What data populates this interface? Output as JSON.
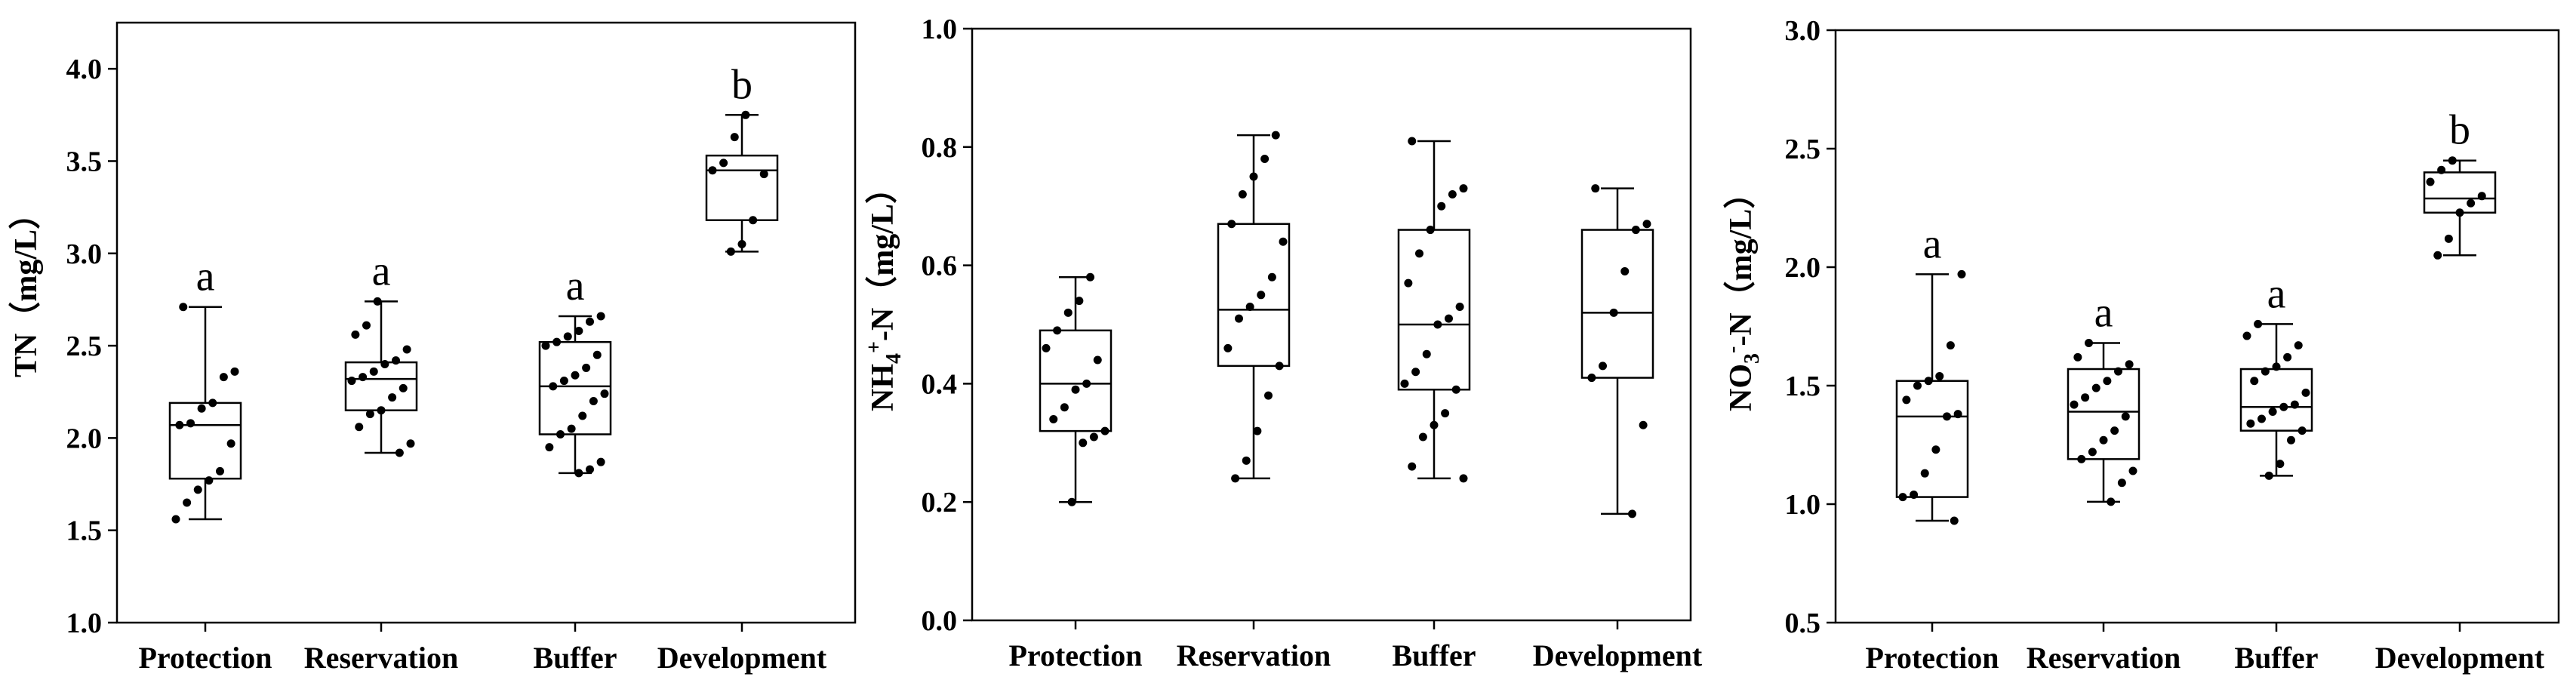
{
  "chart_data": [
    {
      "type": "box",
      "ylabel_main": "TN",
      "ylabel_unit": "（mg/L）",
      "ylim": [
        1.0,
        4.25
      ],
      "yticks": [
        1.0,
        1.5,
        2.0,
        2.5,
        3.0,
        3.5,
        4.0
      ],
      "tick_decimals": 1,
      "categories": [
        "Protection",
        "Reservation",
        "Buffer",
        "Development"
      ],
      "boxes": [
        {
          "min": 1.56,
          "q1": 1.78,
          "median": 2.07,
          "q3": 2.19,
          "max": 2.71,
          "sig": "a",
          "points": [
            1.56,
            1.65,
            1.72,
            1.77,
            1.82,
            1.97,
            2.07,
            2.08,
            2.16,
            2.19,
            2.33,
            2.36,
            2.71
          ]
        },
        {
          "min": 1.92,
          "q1": 2.15,
          "median": 2.32,
          "q3": 2.41,
          "max": 2.74,
          "sig": "a",
          "points": [
            1.92,
            1.97,
            2.06,
            2.13,
            2.15,
            2.22,
            2.27,
            2.31,
            2.33,
            2.36,
            2.4,
            2.42,
            2.48,
            2.56,
            2.61,
            2.74
          ]
        },
        {
          "min": 1.81,
          "q1": 2.02,
          "median": 2.28,
          "q3": 2.52,
          "max": 2.66,
          "sig": "a",
          "points": [
            1.81,
            1.83,
            1.87,
            1.95,
            2.02,
            2.05,
            2.12,
            2.2,
            2.24,
            2.28,
            2.31,
            2.34,
            2.38,
            2.45,
            2.5,
            2.52,
            2.55,
            2.58,
            2.63,
            2.66
          ]
        },
        {
          "min": 3.01,
          "q1": 3.18,
          "median": 3.45,
          "q3": 3.53,
          "max": 3.75,
          "sig": "b",
          "points": [
            3.01,
            3.05,
            3.18,
            3.43,
            3.45,
            3.49,
            3.63,
            3.75
          ]
        }
      ]
    },
    {
      "type": "box",
      "ylabel_main": "NH4+-N",
      "ylabel_unit": "（mg/L）",
      "ylim": [
        0.0,
        1.0
      ],
      "yticks": [
        0.0,
        0.2,
        0.4,
        0.6,
        0.8,
        1.0
      ],
      "tick_decimals": 1,
      "categories": [
        "Protection",
        "Reservation",
        "Buffer",
        "Development"
      ],
      "boxes": [
        {
          "min": 0.2,
          "q1": 0.32,
          "median": 0.4,
          "q3": 0.49,
          "max": 0.58,
          "sig": "",
          "points": [
            0.2,
            0.3,
            0.31,
            0.32,
            0.34,
            0.36,
            0.39,
            0.4,
            0.44,
            0.46,
            0.49,
            0.52,
            0.54,
            0.58
          ]
        },
        {
          "min": 0.24,
          "q1": 0.43,
          "median": 0.525,
          "q3": 0.67,
          "max": 0.82,
          "sig": "",
          "points": [
            0.24,
            0.27,
            0.32,
            0.38,
            0.43,
            0.46,
            0.51,
            0.53,
            0.55,
            0.58,
            0.64,
            0.67,
            0.72,
            0.75,
            0.78,
            0.82
          ]
        },
        {
          "min": 0.24,
          "q1": 0.39,
          "median": 0.5,
          "q3": 0.66,
          "max": 0.81,
          "sig": "",
          "points": [
            0.24,
            0.26,
            0.31,
            0.33,
            0.35,
            0.39,
            0.4,
            0.42,
            0.45,
            0.5,
            0.51,
            0.53,
            0.57,
            0.62,
            0.66,
            0.7,
            0.72,
            0.73,
            0.81
          ]
        },
        {
          "min": 0.18,
          "q1": 0.41,
          "median": 0.52,
          "q3": 0.66,
          "max": 0.73,
          "sig": "",
          "points": [
            0.18,
            0.33,
            0.41,
            0.43,
            0.52,
            0.59,
            0.66,
            0.67,
            0.73
          ]
        }
      ]
    },
    {
      "type": "box",
      "ylabel_main": "NO3--N",
      "ylabel_unit": "（mg/L）",
      "ylim": [
        0.5,
        3.0
      ],
      "yticks": [
        0.5,
        1.0,
        1.5,
        2.0,
        2.5,
        3.0
      ],
      "tick_decimals": 1,
      "categories": [
        "Protection",
        "Reservation",
        "Buffer",
        "Development"
      ],
      "boxes": [
        {
          "min": 0.93,
          "q1": 1.03,
          "median": 1.37,
          "q3": 1.52,
          "max": 1.97,
          "sig": "a",
          "points": [
            0.93,
            1.03,
            1.04,
            1.13,
            1.23,
            1.37,
            1.38,
            1.44,
            1.5,
            1.52,
            1.54,
            1.67,
            1.97
          ]
        },
        {
          "min": 1.01,
          "q1": 1.19,
          "median": 1.39,
          "q3": 1.57,
          "max": 1.68,
          "sig": "a",
          "points": [
            1.01,
            1.09,
            1.14,
            1.19,
            1.22,
            1.27,
            1.31,
            1.37,
            1.42,
            1.45,
            1.49,
            1.52,
            1.56,
            1.59,
            1.62,
            1.68
          ]
        },
        {
          "min": 1.12,
          "q1": 1.31,
          "median": 1.41,
          "q3": 1.57,
          "max": 1.76,
          "sig": "a",
          "points": [
            1.12,
            1.17,
            1.27,
            1.31,
            1.34,
            1.36,
            1.39,
            1.41,
            1.42,
            1.47,
            1.52,
            1.56,
            1.58,
            1.62,
            1.67,
            1.71,
            1.76
          ]
        },
        {
          "min": 2.05,
          "q1": 2.23,
          "median": 2.29,
          "q3": 2.4,
          "max": 2.45,
          "sig": "b",
          "points": [
            2.05,
            2.12,
            2.23,
            2.27,
            2.3,
            2.36,
            2.41,
            2.45
          ]
        }
      ]
    }
  ]
}
